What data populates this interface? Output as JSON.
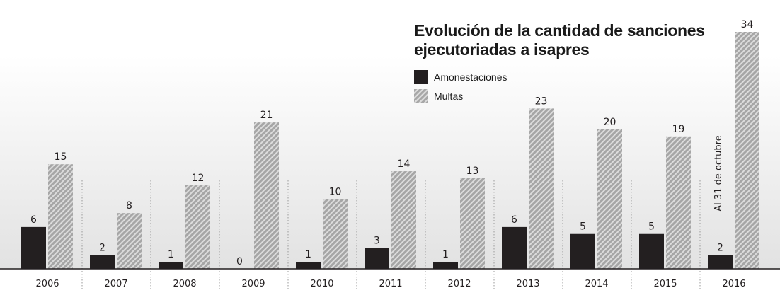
{
  "chart_data": {
    "type": "bar",
    "title": "Evolución de la cantidad de sanciones ejecutoriadas a isapres",
    "categories": [
      "2006",
      "2007",
      "2008",
      "2009",
      "2010",
      "2011",
      "2012",
      "2013",
      "2014",
      "2015",
      "2016"
    ],
    "series": [
      {
        "name": "Amonestaciones",
        "values": [
          6,
          2,
          1,
          0,
          1,
          3,
          1,
          6,
          5,
          5,
          2
        ]
      },
      {
        "name": "Multas",
        "values": [
          15,
          8,
          12,
          21,
          10,
          14,
          13,
          23,
          20,
          19,
          34
        ]
      }
    ],
    "annotations": [
      {
        "category": "2016",
        "text": "Al 31 de octubre"
      }
    ],
    "ylim": [
      0,
      34
    ],
    "grid": false,
    "legend_position": "top-right",
    "colors": {
      "Amonestaciones": "#231f20",
      "Multas": "#b3b3b3"
    }
  },
  "legend": {
    "amonestaciones": "Amonestaciones",
    "multas": "Multas"
  }
}
